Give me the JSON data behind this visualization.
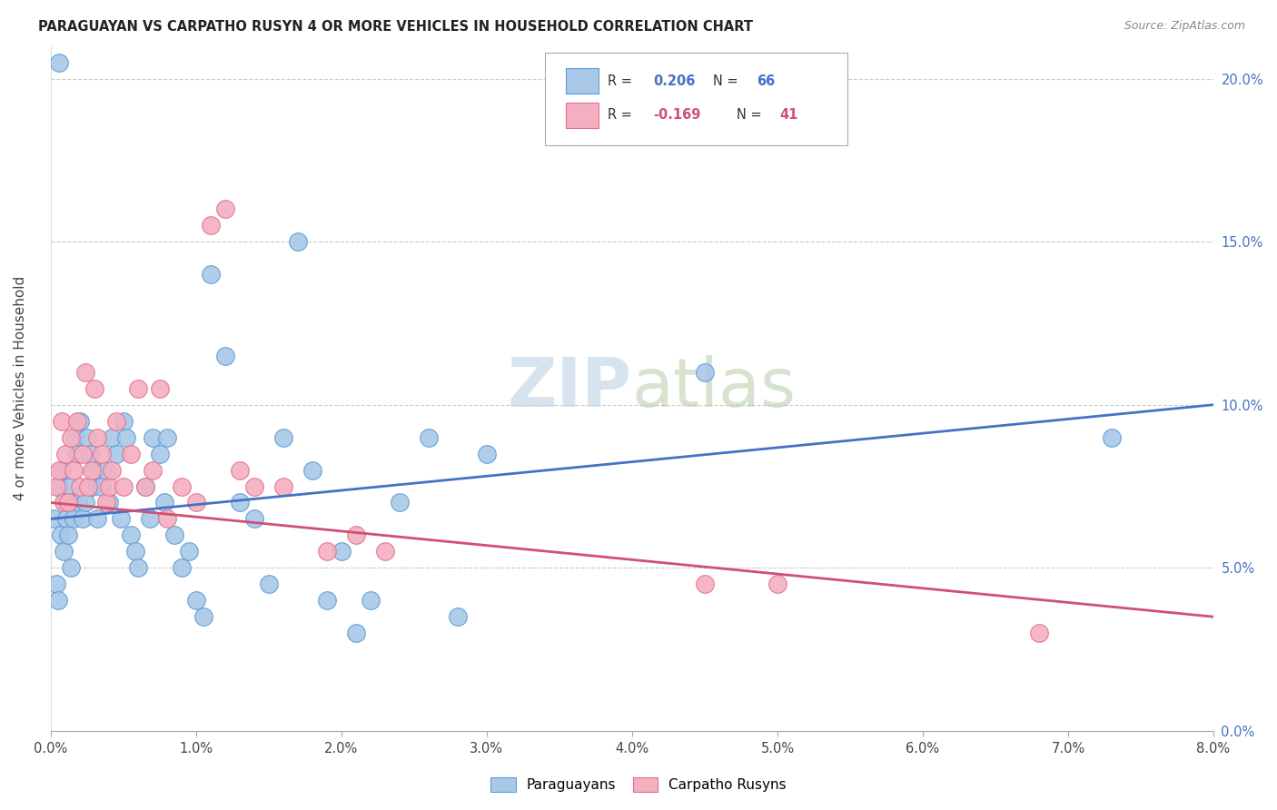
{
  "title": "PARAGUAYAN VS CARPATHO RUSYN 4 OR MORE VEHICLES IN HOUSEHOLD CORRELATION CHART",
  "source": "Source: ZipAtlas.com",
  "ylabel": "4 or more Vehicles in Household",
  "xlim": [
    0.0,
    8.0
  ],
  "ylim": [
    0.0,
    21.0
  ],
  "yticks": [
    0.0,
    5.0,
    10.0,
    15.0,
    20.0
  ],
  "xticks": [
    0.0,
    1.0,
    2.0,
    3.0,
    4.0,
    5.0,
    6.0,
    7.0,
    8.0
  ],
  "blue_r": "0.206",
  "blue_n": "66",
  "pink_r": "-0.169",
  "pink_n": "41",
  "blue_face": "#a8c8e8",
  "pink_face": "#f4b0c0",
  "blue_edge": "#5b9bd5",
  "pink_edge": "#e07090",
  "blue_line": "#4472c4",
  "pink_line": "#d05070",
  "watermark_color": "#d8e4f0",
  "blue_trend_x": [
    0.0,
    8.0
  ],
  "blue_trend_y": [
    6.5,
    10.0
  ],
  "pink_trend_x": [
    0.0,
    8.0
  ],
  "pink_trend_y": [
    7.0,
    3.5
  ],
  "paraguayan_x": [
    0.02,
    0.04,
    0.05,
    0.06,
    0.07,
    0.08,
    0.09,
    0.1,
    0.11,
    0.12,
    0.13,
    0.14,
    0.15,
    0.16,
    0.17,
    0.18,
    0.19,
    0.2,
    0.22,
    0.24,
    0.25,
    0.27,
    0.28,
    0.3,
    0.32,
    0.35,
    0.38,
    0.4,
    0.42,
    0.45,
    0.48,
    0.5,
    0.52,
    0.55,
    0.58,
    0.6,
    0.65,
    0.68,
    0.7,
    0.75,
    0.78,
    0.8,
    0.85,
    0.9,
    0.95,
    1.0,
    1.05,
    1.1,
    1.2,
    1.3,
    1.4,
    1.5,
    1.6,
    1.7,
    1.8,
    1.9,
    2.0,
    2.1,
    2.2,
    2.4,
    2.6,
    2.8,
    3.0,
    4.5,
    7.3,
    0.06
  ],
  "paraguayan_y": [
    6.5,
    4.5,
    4.0,
    7.5,
    6.0,
    8.0,
    5.5,
    7.0,
    6.5,
    6.0,
    7.5,
    5.0,
    7.0,
    6.5,
    9.0,
    8.5,
    7.0,
    9.5,
    6.5,
    7.0,
    9.0,
    8.5,
    7.5,
    8.0,
    6.5,
    7.5,
    8.0,
    7.0,
    9.0,
    8.5,
    6.5,
    9.5,
    9.0,
    6.0,
    5.5,
    5.0,
    7.5,
    6.5,
    9.0,
    8.5,
    7.0,
    9.0,
    6.0,
    5.0,
    5.5,
    4.0,
    3.5,
    14.0,
    11.5,
    7.0,
    6.5,
    4.5,
    9.0,
    15.0,
    8.0,
    4.0,
    5.5,
    3.0,
    4.0,
    7.0,
    9.0,
    3.5,
    8.5,
    11.0,
    9.0,
    20.5
  ],
  "rusyn_x": [
    0.04,
    0.06,
    0.08,
    0.09,
    0.1,
    0.12,
    0.14,
    0.16,
    0.18,
    0.2,
    0.22,
    0.24,
    0.26,
    0.28,
    0.3,
    0.32,
    0.35,
    0.38,
    0.4,
    0.42,
    0.45,
    0.5,
    0.55,
    0.6,
    0.65,
    0.7,
    0.75,
    0.8,
    0.9,
    1.0,
    1.1,
    1.2,
    1.3,
    1.4,
    1.6,
    1.9,
    2.1,
    2.3,
    4.5,
    5.0,
    6.8
  ],
  "rusyn_y": [
    7.5,
    8.0,
    9.5,
    7.0,
    8.5,
    7.0,
    9.0,
    8.0,
    9.5,
    7.5,
    8.5,
    11.0,
    7.5,
    8.0,
    10.5,
    9.0,
    8.5,
    7.0,
    7.5,
    8.0,
    9.5,
    7.5,
    8.5,
    10.5,
    7.5,
    8.0,
    10.5,
    6.5,
    7.5,
    7.0,
    15.5,
    16.0,
    8.0,
    7.5,
    7.5,
    5.5,
    6.0,
    5.5,
    4.5,
    4.5,
    3.0
  ]
}
